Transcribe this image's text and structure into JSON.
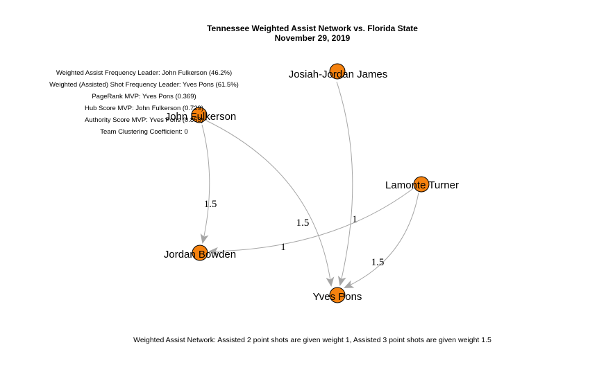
{
  "title": {
    "line1": "Tennessee Weighted Assist Network vs. Florida State",
    "line2": "November 29, 2019"
  },
  "stats": [
    "Weighted Assist Frequency Leader: John Fulkerson (46.2%)",
    "Weighted (Assisted) Shot Frequency Leader: Yves Pons (61.5%)",
    "PageRank MVP: Yves Pons (0.369)",
    "Hub Score MVP: John Fulkerson (0.729)",
    "Authority Score MVP: Yves Pons (0.853)",
    "Team Clustering Coefficient: 0"
  ],
  "footer": "Weighted Assist Network: Assisted 2 point shots are given weight 1, Assisted 3 point shots are given weight 1.5",
  "colors": {
    "node_fill": "#f5820f",
    "node_stroke": "#000000",
    "edge": "#a6a6a6"
  },
  "graph": {
    "nodes": [
      {
        "id": "josiah",
        "label": "Josiah-Jordan James"
      },
      {
        "id": "john",
        "label": "John Fulkerson"
      },
      {
        "id": "lamonte",
        "label": "Lamonte Turner"
      },
      {
        "id": "jordan",
        "label": "Jordan Bowden"
      },
      {
        "id": "yves",
        "label": "Yves Pons"
      }
    ],
    "edges": [
      {
        "from": "john",
        "to": "jordan",
        "weight": "1.5"
      },
      {
        "from": "john",
        "to": "yves",
        "weight": "1.5"
      },
      {
        "from": "josiah",
        "to": "yves",
        "weight": "1"
      },
      {
        "from": "lamonte",
        "to": "jordan",
        "weight": "1"
      },
      {
        "from": "lamonte",
        "to": "yves",
        "weight": "1.5"
      }
    ]
  }
}
